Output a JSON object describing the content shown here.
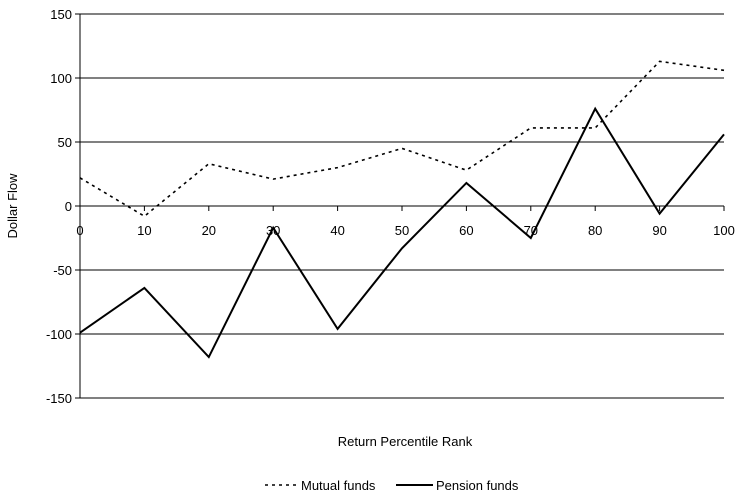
{
  "chart_data": {
    "type": "line",
    "title": "",
    "xlabel": "Return Percentile Rank",
    "ylabel": "Dollar Flow",
    "x": [
      0,
      10,
      20,
      30,
      40,
      50,
      60,
      70,
      80,
      90,
      100
    ],
    "xlim": [
      0,
      100
    ],
    "ylim": [
      -150,
      150
    ],
    "x_ticks": [
      "0",
      "10",
      "20",
      "30",
      "40",
      "50",
      "60",
      "70",
      "80",
      "90",
      "100"
    ],
    "y_ticks": [
      "150",
      "100",
      "50",
      "0",
      "-50",
      "-100",
      "-150"
    ],
    "gridlines": "horizontal",
    "legend_position": "bottom",
    "series": [
      {
        "name": "Mutual funds",
        "style": "dashed",
        "values": [
          22,
          -8,
          33,
          21,
          30,
          45,
          28,
          61,
          61,
          113,
          106
        ]
      },
      {
        "name": "Pension funds",
        "style": "solid",
        "values": [
          -99,
          -64,
          -118,
          -17,
          -96,
          -33,
          18,
          -25,
          76,
          -6,
          56
        ]
      }
    ]
  }
}
